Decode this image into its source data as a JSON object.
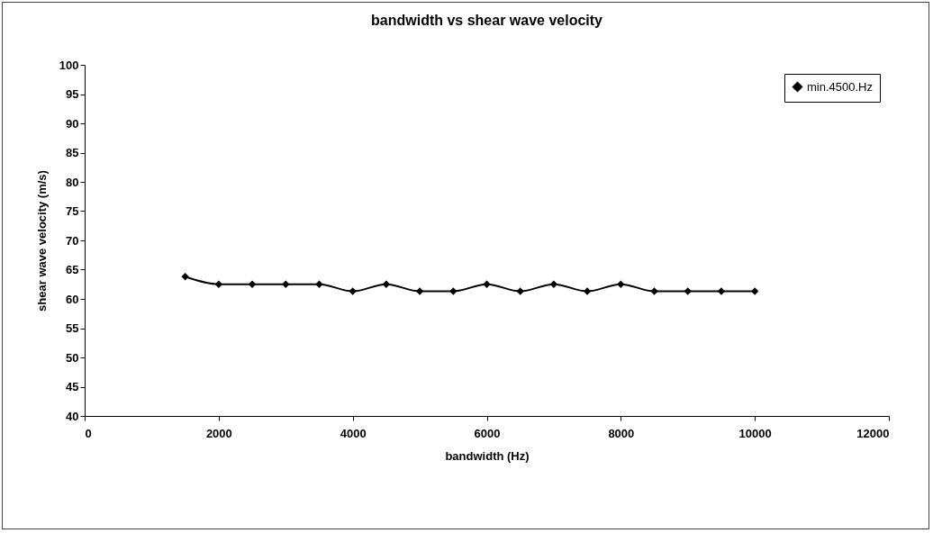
{
  "chart_data": {
    "type": "line",
    "title": "bandwidth vs shear wave velocity",
    "xlabel": "bandwidth (Hz)",
    "ylabel": "shear wave velocity (m/s)",
    "x": [
      1500,
      2000,
      2500,
      3000,
      3500,
      4000,
      4500,
      5000,
      5500,
      6000,
      6500,
      7000,
      7500,
      8000,
      8500,
      9000,
      9500,
      10000
    ],
    "series": [
      {
        "name": "min.4500.Hz",
        "color": "#000000",
        "values": [
          63.8,
          62.5,
          62.5,
          62.5,
          62.5,
          61.3,
          62.5,
          61.3,
          61.3,
          62.5,
          61.3,
          62.5,
          61.3,
          62.5,
          61.3,
          61.3,
          61.3,
          61.3
        ]
      }
    ],
    "xlim": [
      0,
      12000
    ],
    "xticks": [
      0,
      2000,
      4000,
      6000,
      8000,
      10000,
      12000
    ],
    "ylim": [
      40,
      100
    ],
    "yticks": [
      40,
      45,
      50,
      55,
      60,
      65,
      70,
      75,
      80,
      85,
      90,
      95,
      100
    ],
    "legend": "top right",
    "marker": "diamond",
    "line_style": "solid",
    "grid": false
  }
}
